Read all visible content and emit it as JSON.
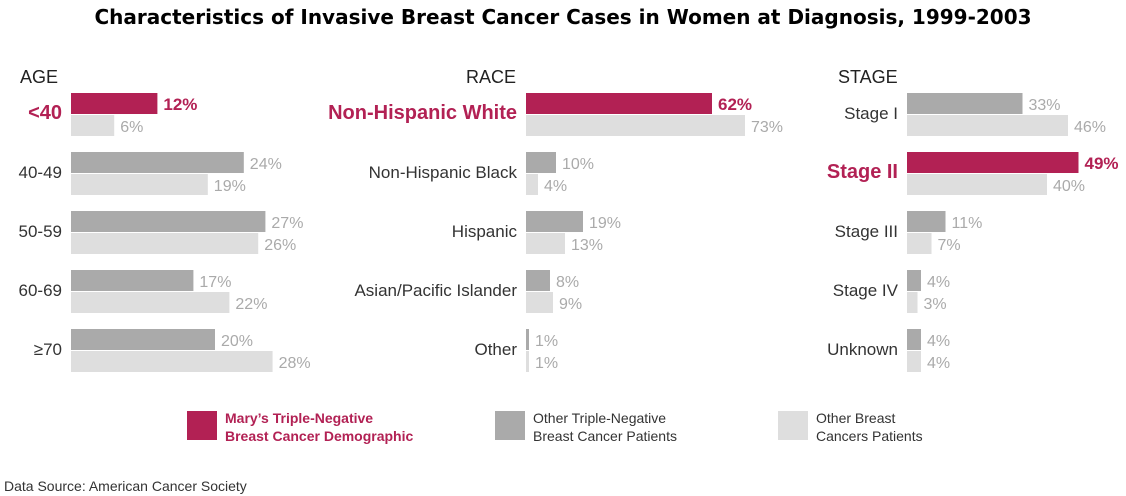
{
  "chart_data": {
    "type": "bar",
    "title": "Characteristics of Invasive Breast Cancer Cases in Women at Diagnosis, 1999-2003",
    "source": "Data Source: American Cancer Society",
    "colors": {
      "highlight": "#b22154",
      "other_tn": "#aaaaaa",
      "other_bc": "#dedede"
    },
    "legend": [
      {
        "key": "highlight",
        "lines": [
          "Mary’s Triple-Negative",
          "Breast Cancer Demographic"
        ]
      },
      {
        "key": "other_tn",
        "lines": [
          "Other Triple-Negative",
          "Breast Cancer Patients"
        ]
      },
      {
        "key": "other_bc",
        "lines": [
          "Other Breast",
          "Cancers Patients"
        ]
      }
    ],
    "panels": [
      {
        "title": "AGE",
        "categories": [
          {
            "label": "<40",
            "tn": 12,
            "other": 6,
            "highlight": true
          },
          {
            "label": "40-49",
            "tn": 24,
            "other": 19,
            "highlight": false
          },
          {
            "label": "50-59",
            "tn": 27,
            "other": 26,
            "highlight": false
          },
          {
            "label": "60-69",
            "tn": 17,
            "other": 22,
            "highlight": false
          },
          {
            "label": "≥70",
            "tn": 20,
            "other": 28,
            "highlight": false
          }
        ]
      },
      {
        "title": "RACE",
        "categories": [
          {
            "label": "Non-Hispanic White",
            "tn": 62,
            "other": 73,
            "highlight": true
          },
          {
            "label": "Non-Hispanic Black",
            "tn": 10,
            "other": 4,
            "highlight": false
          },
          {
            "label": "Hispanic",
            "tn": 19,
            "other": 13,
            "highlight": false
          },
          {
            "label": "Asian/Pacific Islander",
            "tn": 8,
            "other": 9,
            "highlight": false
          },
          {
            "label": "Other",
            "tn": 1,
            "other": 1,
            "highlight": false
          }
        ]
      },
      {
        "title": "STAGE",
        "categories": [
          {
            "label": "Stage I",
            "tn": 33,
            "other": 46,
            "highlight": false
          },
          {
            "label": "Stage II",
            "tn": 49,
            "other": 40,
            "highlight": true
          },
          {
            "label": "Stage III",
            "tn": 11,
            "other": 7,
            "highlight": false
          },
          {
            "label": "Stage IV",
            "tn": 4,
            "other": 3,
            "highlight": false
          },
          {
            "label": "Unknown",
            "tn": 4,
            "other": 4,
            "highlight": false
          }
        ]
      }
    ]
  }
}
